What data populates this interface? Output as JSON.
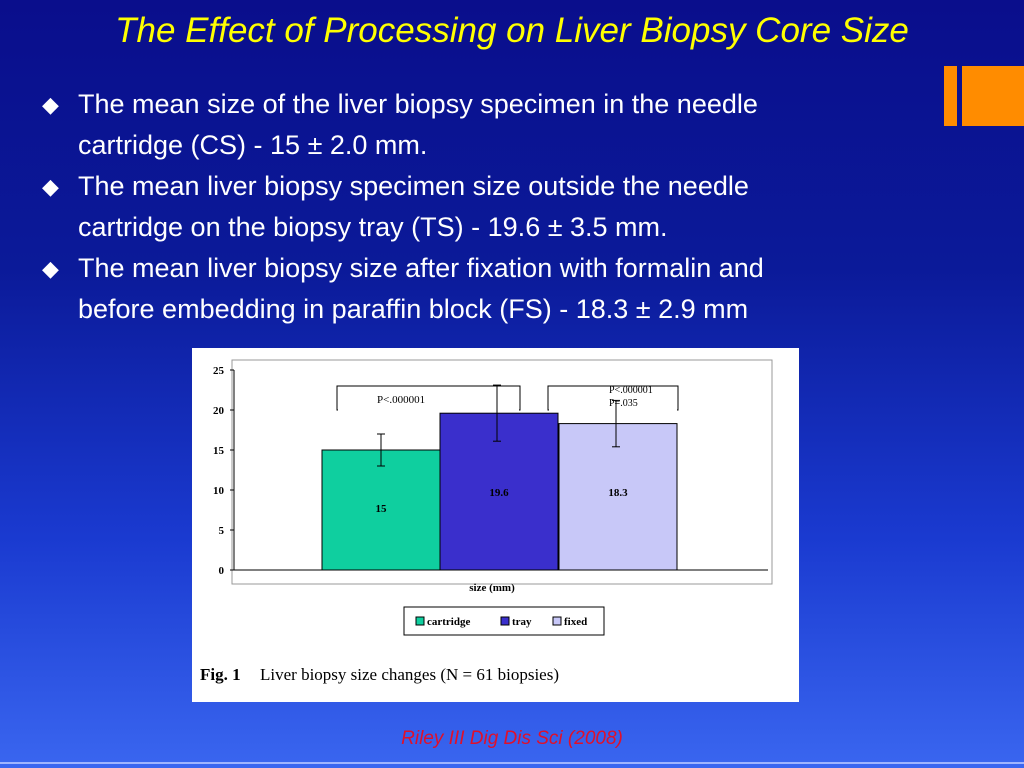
{
  "slide": {
    "title": "The Effect of Processing on Liver Biopsy Core Size",
    "bullets": [
      {
        "line1": "The mean size of the liver biopsy specimen in the needle",
        "line2": "cartridge (CS) - 15 ± 2.0 mm."
      },
      {
        "line1": "The mean liver biopsy specimen size  outside the needle",
        "line2": "cartridge on the biopsy tray (TS) - 19.6 ± 3.5 mm."
      },
      {
        "line1": "The mean liver biopsy size  after fixation with formalin and",
        "line2": "before embedding in paraffin block (FS) - 18.3 ± 2.9 mm"
      }
    ],
    "bullet_icon": "diamond-bullet-icon",
    "footer": "Riley III Dig Dis Sci (2008)",
    "colors": {
      "title": "#ffff00",
      "text": "#ffffff",
      "footer": "#e0102a",
      "accent": "#ff8c00"
    }
  },
  "chart_data": {
    "type": "bar",
    "categories": [
      "cartridge",
      "tray",
      "fixed"
    ],
    "values": [
      15,
      19.6,
      18.3
    ],
    "errors": [
      2.0,
      3.5,
      2.9
    ],
    "value_labels": [
      "15",
      "19.6",
      "18.3"
    ],
    "colors": [
      "#0fcf9f",
      "#3a2fcc",
      "#c8c8f8"
    ],
    "xlabel": "size (mm)",
    "ylabel": "",
    "ylim": [
      0,
      25
    ],
    "yticks": [
      0,
      5,
      10,
      15,
      20,
      25
    ],
    "legend": [
      "cartridge",
      "tray",
      "fixed"
    ],
    "legend_placement": "bottom",
    "annotations": [
      {
        "text": "P<.000001"
      },
      {
        "text": "P<.000001"
      },
      {
        "text": "P=.035"
      }
    ],
    "caption_label": "Fig. 1",
    "caption_text": "Liver biopsy size changes (N = 61 biopsies)"
  }
}
